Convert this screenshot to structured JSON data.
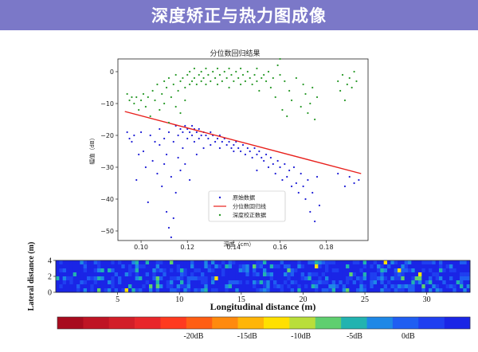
{
  "page": {
    "title": "深度矫正与热力图成像"
  },
  "chart_data": [
    {
      "type": "scatter",
      "title": "分位数回归结果",
      "xlabel": "深度（cm）",
      "ylabel": "幅值（dB）",
      "xlim": [
        0.09,
        0.198
      ],
      "ylim": [
        -53,
        4
      ],
      "xticks": [
        0.1,
        0.12,
        0.14,
        0.16,
        0.18
      ],
      "xtick_labels": [
        "0.10",
        "0.12",
        "0.14",
        "0.16",
        "0.18"
      ],
      "yticks": [
        0,
        -10,
        -20,
        -30,
        -40,
        -50
      ],
      "ytick_labels": [
        "0",
        "−10",
        "−20",
        "−30",
        "−40",
        "−50"
      ],
      "legend_position": "lower-center",
      "grid": false,
      "series": [
        {
          "name": "原始数据",
          "kind": "scatter",
          "color": "#1f1fd6",
          "points": [
            [
              0.094,
              -19
            ],
            [
              0.095,
              -21
            ],
            [
              0.096,
              -22
            ],
            [
              0.097,
              -20
            ],
            [
              0.098,
              -34
            ],
            [
              0.099,
              -26
            ],
            [
              0.1,
              -19
            ],
            [
              0.101,
              -25
            ],
            [
              0.102,
              -30
            ],
            [
              0.103,
              -41
            ],
            [
              0.104,
              -20
            ],
            [
              0.105,
              -28
            ],
            [
              0.106,
              -22
            ],
            [
              0.107,
              -32
            ],
            [
              0.108,
              -23
            ],
            [
              0.108,
              -18
            ],
            [
              0.109,
              -36
            ],
            [
              0.11,
              -21
            ],
            [
              0.11,
              -29
            ],
            [
              0.111,
              -44
            ],
            [
              0.111,
              -26
            ],
            [
              0.112,
              -49
            ],
            [
              0.112,
              -19
            ],
            [
              0.113,
              -52
            ],
            [
              0.113,
              -33
            ],
            [
              0.114,
              -46
            ],
            [
              0.114,
              -22
            ],
            [
              0.115,
              -38
            ],
            [
              0.115,
              -17
            ],
            [
              0.116,
              -27
            ],
            [
              0.116,
              -20
            ],
            [
              0.117,
              -31
            ],
            [
              0.117,
              -18
            ],
            [
              0.118,
              -24
            ],
            [
              0.118,
              -19
            ],
            [
              0.119,
              -29
            ],
            [
              0.119,
              -17
            ],
            [
              0.12,
              -21
            ],
            [
              0.12,
              -18
            ],
            [
              0.121,
              -34
            ],
            [
              0.121,
              -19
            ],
            [
              0.122,
              -20
            ],
            [
              0.122,
              -17
            ],
            [
              0.123,
              -18
            ],
            [
              0.123,
              -22
            ],
            [
              0.124,
              -19
            ],
            [
              0.124,
              -26
            ],
            [
              0.125,
              -18
            ],
            [
              0.125,
              -21
            ],
            [
              0.126,
              -20
            ],
            [
              0.127,
              -19
            ],
            [
              0.127,
              -24
            ],
            [
              0.128,
              -20
            ],
            [
              0.129,
              -21
            ],
            [
              0.13,
              -19
            ],
            [
              0.13,
              -23
            ],
            [
              0.131,
              -20
            ],
            [
              0.132,
              -22
            ],
            [
              0.133,
              -21
            ],
            [
              0.134,
              -20
            ],
            [
              0.134,
              -24
            ],
            [
              0.135,
              -22
            ],
            [
              0.136,
              -21
            ],
            [
              0.137,
              -23
            ],
            [
              0.138,
              -22
            ],
            [
              0.139,
              -24
            ],
            [
              0.14,
              -23
            ],
            [
              0.14,
              -25
            ],
            [
              0.141,
              -22
            ],
            [
              0.142,
              -24
            ],
            [
              0.143,
              -25
            ],
            [
              0.144,
              -23
            ],
            [
              0.145,
              -26
            ],
            [
              0.146,
              -24
            ],
            [
              0.147,
              -25
            ],
            [
              0.148,
              -27
            ],
            [
              0.149,
              -24
            ],
            [
              0.15,
              -26
            ],
            [
              0.15,
              -31
            ],
            [
              0.151,
              -25
            ],
            [
              0.152,
              -27
            ],
            [
              0.153,
              -28
            ],
            [
              0.154,
              -26
            ],
            [
              0.155,
              -30
            ],
            [
              0.156,
              -27
            ],
            [
              0.157,
              -29
            ],
            [
              0.158,
              -32
            ],
            [
              0.159,
              -28
            ],
            [
              0.16,
              -30
            ],
            [
              0.161,
              -34
            ],
            [
              0.162,
              -29
            ],
            [
              0.163,
              -33
            ],
            [
              0.164,
              -31
            ],
            [
              0.165,
              -36
            ],
            [
              0.166,
              -30
            ],
            [
              0.167,
              -35
            ],
            [
              0.168,
              -38
            ],
            [
              0.169,
              -32
            ],
            [
              0.17,
              -36
            ],
            [
              0.171,
              -40
            ],
            [
              0.172,
              -34
            ],
            [
              0.173,
              -44
            ],
            [
              0.174,
              -38
            ],
            [
              0.175,
              -47
            ],
            [
              0.176,
              -33
            ],
            [
              0.177,
              -42
            ],
            [
              0.185,
              -32
            ],
            [
              0.188,
              -36
            ],
            [
              0.19,
              -33
            ],
            [
              0.192,
              -35
            ],
            [
              0.194,
              -34
            ]
          ]
        },
        {
          "name": "分位数回归线",
          "kind": "line",
          "color": "#e8201c",
          "points": [
            [
              0.093,
              -12.5
            ],
            [
              0.195,
              -32
            ]
          ]
        },
        {
          "name": "深度校正数据",
          "kind": "scatter",
          "color": "#2a9a2a",
          "points": [
            [
              0.094,
              -7
            ],
            [
              0.095,
              -9
            ],
            [
              0.096,
              -8
            ],
            [
              0.097,
              -10
            ],
            [
              0.098,
              -8
            ],
            [
              0.099,
              -12
            ],
            [
              0.1,
              -9
            ],
            [
              0.101,
              -7
            ],
            [
              0.102,
              -11
            ],
            [
              0.103,
              -8
            ],
            [
              0.104,
              -14
            ],
            [
              0.105,
              -6
            ],
            [
              0.106,
              -9
            ],
            [
              0.107,
              -4
            ],
            [
              0.108,
              -12
            ],
            [
              0.109,
              -7
            ],
            [
              0.11,
              -3
            ],
            [
              0.11,
              -10
            ],
            [
              0.111,
              -5
            ],
            [
              0.112,
              -16
            ],
            [
              0.112,
              -2
            ],
            [
              0.113,
              -8
            ],
            [
              0.114,
              -4
            ],
            [
              0.115,
              -11
            ],
            [
              0.115,
              -1
            ],
            [
              0.116,
              -6
            ],
            [
              0.117,
              -3
            ],
            [
              0.117,
              -13
            ],
            [
              0.118,
              -2
            ],
            [
              0.119,
              -5
            ],
            [
              0.119,
              -9
            ],
            [
              0.12,
              -1
            ],
            [
              0.121,
              -4
            ],
            [
              0.121,
              0
            ],
            [
              0.122,
              -3
            ],
            [
              0.123,
              -2
            ],
            [
              0.123,
              1
            ],
            [
              0.124,
              -4
            ],
            [
              0.125,
              -1
            ],
            [
              0.126,
              -3
            ],
            [
              0.126,
              0
            ],
            [
              0.127,
              -2
            ],
            [
              0.128,
              -4
            ],
            [
              0.128,
              1
            ],
            [
              0.129,
              -1
            ],
            [
              0.13,
              -3
            ],
            [
              0.131,
              0
            ],
            [
              0.132,
              -2
            ],
            [
              0.133,
              -4
            ],
            [
              0.133,
              1
            ],
            [
              0.134,
              -1
            ],
            [
              0.135,
              -3
            ],
            [
              0.136,
              0
            ],
            [
              0.137,
              -2
            ],
            [
              0.138,
              -5
            ],
            [
              0.138,
              1
            ],
            [
              0.139,
              -1
            ],
            [
              0.14,
              -3
            ],
            [
              0.141,
              0
            ],
            [
              0.142,
              -2
            ],
            [
              0.143,
              -4
            ],
            [
              0.143,
              1
            ],
            [
              0.144,
              -1
            ],
            [
              0.145,
              -3
            ],
            [
              0.146,
              0
            ],
            [
              0.147,
              -2
            ],
            [
              0.148,
              -4
            ],
            [
              0.149,
              -1
            ],
            [
              0.15,
              -3
            ],
            [
              0.15,
              1
            ],
            [
              0.151,
              -6
            ],
            [
              0.152,
              -2
            ],
            [
              0.153,
              -1
            ],
            [
              0.154,
              -3
            ],
            [
              0.155,
              0
            ],
            [
              0.156,
              -5
            ],
            [
              0.157,
              -2
            ],
            [
              0.158,
              -8
            ],
            [
              0.159,
              2
            ],
            [
              0.16,
              -1
            ],
            [
              0.16,
              4
            ],
            [
              0.161,
              -12
            ],
            [
              0.162,
              -3
            ],
            [
              0.163,
              -14
            ],
            [
              0.164,
              -6
            ],
            [
              0.165,
              -9
            ],
            [
              0.167,
              -2
            ],
            [
              0.169,
              -11
            ],
            [
              0.17,
              -4
            ],
            [
              0.171,
              -7
            ],
            [
              0.172,
              -13
            ],
            [
              0.173,
              -10
            ],
            [
              0.174,
              -5
            ],
            [
              0.175,
              -15
            ],
            [
              0.176,
              -8
            ],
            [
              0.185,
              -3
            ],
            [
              0.186,
              -6
            ],
            [
              0.187,
              -1
            ],
            [
              0.188,
              -9
            ],
            [
              0.189,
              -4
            ],
            [
              0.19,
              -2
            ],
            [
              0.191,
              -5
            ],
            [
              0.192,
              0
            ],
            [
              0.193,
              -3
            ]
          ]
        }
      ]
    },
    {
      "type": "heatmap",
      "xlabel": "Longitudinal distance (m)",
      "ylabel": "Lateral distance (m)",
      "xlim": [
        0,
        33.5
      ],
      "ylim": [
        0,
        4
      ],
      "xticks": [
        5,
        10,
        15,
        20,
        25,
        30
      ],
      "xtick_labels": [
        "5",
        "10",
        "15",
        "20",
        "25",
        "30"
      ],
      "yticks": [
        0,
        2,
        4
      ],
      "ytick_labels": [
        "0",
        "2",
        "4"
      ],
      "rows": 8,
      "cols": 120,
      "colorbar": {
        "range_db": [
          -30,
          0
        ],
        "ticks": [
          -20,
          -15,
          -10,
          -5,
          0
        ],
        "tick_labels": [
          "-20dB",
          "-15dB",
          "-10dB",
          "-5dB",
          "0dB"
        ],
        "colors": [
          "#a80b1e",
          "#bf1424",
          "#d21e28",
          "#e8262a",
          "#ff3a1f",
          "#ff5e14",
          "#ff8a0e",
          "#ffb508",
          "#ffe000",
          "#b9de3a",
          "#5fcf6f",
          "#22b3b0",
          "#1e88e6",
          "#1f5ef2",
          "#1f3ff0",
          "#1a25e6"
        ]
      }
    }
  ]
}
